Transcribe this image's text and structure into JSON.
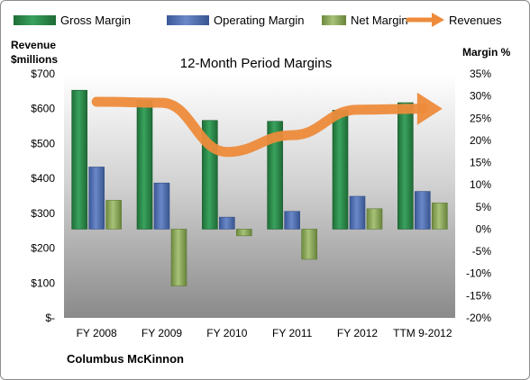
{
  "chart_data": {
    "type": "bar",
    "title": "12-Month Period Margins",
    "company": "Columbus McKinnon",
    "categories": [
      "FY 2008",
      "FY 2009",
      "FY 2010",
      "FY 2011",
      "FY 2012",
      "TTM 9-2012"
    ],
    "left_axis": {
      "label_line1": "Revenue",
      "label_line2": "$millions",
      "ticks": [
        "$-",
        "$100",
        "$200",
        "$300",
        "$400",
        "$500",
        "$600",
        "$700"
      ],
      "range": [
        0,
        700
      ]
    },
    "right_axis": {
      "label": "Margin %",
      "ticks": [
        "-20%",
        "-15%",
        "-10%",
        "-5%",
        "0%",
        "5%",
        "10%",
        "15%",
        "20%",
        "25%",
        "30%",
        "35%"
      ],
      "range": [
        -20,
        35
      ]
    },
    "legend_position": "top",
    "series": [
      {
        "name": "Gross Margin",
        "type": "bar",
        "axis": "right",
        "color": "#2e8b4e",
        "values": [
          31.3,
          29.0,
          24.5,
          24.3,
          26.8,
          28.5
        ]
      },
      {
        "name": "Operating Margin",
        "type": "bar",
        "axis": "right",
        "color": "#4f6fb5",
        "values": [
          14.0,
          10.4,
          2.7,
          4.0,
          7.4,
          8.5
        ]
      },
      {
        "name": "Net Margin",
        "type": "bar",
        "axis": "right",
        "color": "#8aa85a",
        "values": [
          6.5,
          -12.8,
          -1.5,
          -6.8,
          4.6,
          5.9
        ]
      },
      {
        "name": "Revenues",
        "type": "line",
        "axis": "left",
        "color": "#ed8b3b",
        "values": [
          620,
          617,
          476,
          524,
          597,
          600
        ]
      }
    ]
  }
}
